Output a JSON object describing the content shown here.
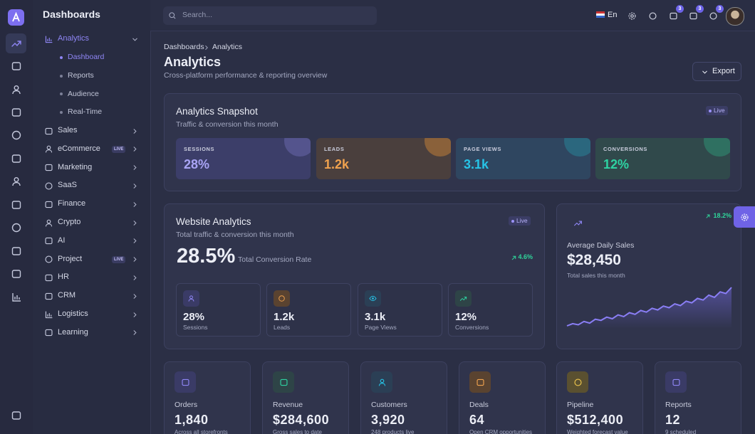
{
  "sidebar": {
    "brand": "Dashboards",
    "items": [
      {
        "label": "Analytics",
        "children": [
          "Dashboard",
          "Reports",
          "Audience",
          "Real-Time"
        ]
      },
      {
        "label": "Sales"
      },
      {
        "label": "eCommerce",
        "badge": "LIVE"
      },
      {
        "label": "Marketing"
      },
      {
        "label": "SaaS"
      },
      {
        "label": "Finance"
      },
      {
        "label": "Crypto"
      },
      {
        "label": "AI"
      },
      {
        "label": "Project",
        "badge": "LIVE"
      },
      {
        "label": "HR"
      },
      {
        "label": "CRM"
      },
      {
        "label": "Logistics"
      },
      {
        "label": "Learning"
      }
    ]
  },
  "header": {
    "search": "Search...",
    "language": "En",
    "badges": [
      "3",
      "3",
      "3"
    ]
  },
  "breadcrumb": [
    "Dashboards",
    "Analytics"
  ],
  "page": {
    "title": "Analytics",
    "subtitle": "Cross-platform performance & reporting overview",
    "action": "Export"
  },
  "snapshot": {
    "title": "Analytics Snapshot",
    "subtitle": "Traffic & conversion this month",
    "status": "Live",
    "tiles": [
      {
        "label": "SESSIONS",
        "value": "28%"
      },
      {
        "label": "LEADS",
        "value": "1.2k"
      },
      {
        "label": "PAGE VIEWS",
        "value": "3.1k"
      },
      {
        "label": "CONVERSIONS",
        "value": "12%"
      }
    ]
  },
  "website": {
    "title": "Website Analytics",
    "status": "Live",
    "subtitle": "Total traffic & conversion this month",
    "value": "28.5%",
    "caption": "Total Conversion Rate",
    "change": "4.6%",
    "stats": [
      {
        "value": "28%",
        "label": "Sessions"
      },
      {
        "value": "1.2k",
        "label": "Leads"
      },
      {
        "value": "3.1k",
        "label": "Page Views"
      },
      {
        "value": "12%",
        "label": "Conversions"
      }
    ]
  },
  "sales": {
    "change": "18.2%",
    "title": "Average Daily Sales",
    "value": "$28,450",
    "caption": "Total sales this month",
    "trend": [
      10,
      14,
      12,
      18,
      15,
      22,
      20,
      26,
      23,
      30,
      27,
      34,
      31,
      38,
      35,
      42,
      39,
      46,
      43,
      50,
      47,
      55,
      52,
      60,
      57,
      66,
      62,
      72,
      69,
      80
    ]
  },
  "kpis": [
    {
      "label": "Orders",
      "value": "1,840",
      "note": "Across all storefronts"
    },
    {
      "label": "Revenue",
      "value": "$284,600",
      "note": "Gross sales to date"
    },
    {
      "label": "Customers",
      "value": "3,920",
      "note": "248 products live"
    },
    {
      "label": "Deals",
      "value": "64",
      "note": "Open CRM opportunities"
    },
    {
      "label": "Pipeline",
      "value": "$512,400",
      "note": "Weighted forecast value"
    },
    {
      "label": "Reports",
      "value": "12",
      "note": "9 scheduled"
    }
  ]
}
